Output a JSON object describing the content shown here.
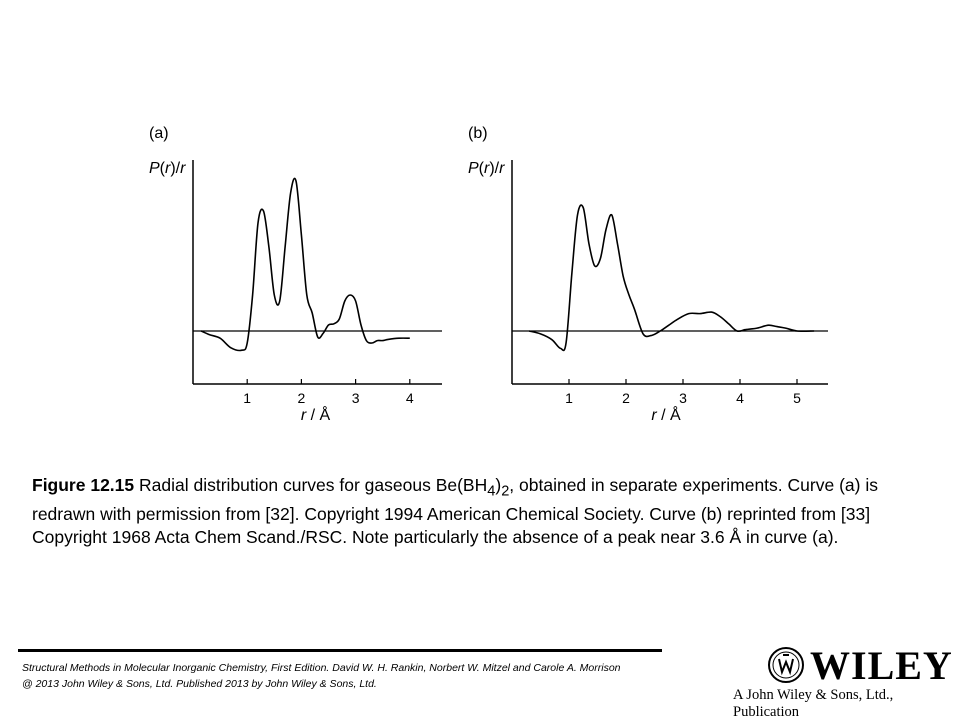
{
  "chart_data": [
    {
      "type": "line",
      "panel_label": "(a)",
      "ylabel": "P(r)/r",
      "xlabel": "r / Å",
      "xlim": [
        0,
        4.5
      ],
      "xticks": [
        1,
        2,
        3,
        4
      ],
      "xtick_labels": [
        "1",
        "2",
        "3",
        "4"
      ],
      "y_units": "arbitrary",
      "series": [
        {
          "x": [
            0.15,
            0.3,
            0.5,
            0.7,
            0.9,
            1.0,
            1.1,
            1.2,
            1.3,
            1.4,
            1.5,
            1.6,
            1.7,
            1.8,
            1.9,
            2.0,
            2.1,
            2.2,
            2.3,
            2.4,
            2.5,
            2.6,
            2.7,
            2.8,
            2.9,
            3.0,
            3.1,
            3.2,
            3.3,
            3.4,
            3.5,
            3.6,
            3.8,
            4.0
          ],
          "y": [
            0.0,
            -0.03,
            -0.06,
            -0.14,
            -0.16,
            -0.1,
            0.3,
            0.9,
            1.0,
            0.7,
            0.3,
            0.25,
            0.7,
            1.15,
            1.25,
            0.8,
            0.3,
            0.15,
            -0.05,
            -0.02,
            0.05,
            0.06,
            0.1,
            0.25,
            0.3,
            0.25,
            0.05,
            -0.08,
            -0.1,
            -0.08,
            -0.08,
            -0.07,
            -0.06,
            -0.06
          ]
        }
      ]
    },
    {
      "type": "line",
      "panel_label": "(b)",
      "ylabel": "P(r)/r",
      "xlabel": "r / Å",
      "xlim": [
        0,
        5.5
      ],
      "xticks": [
        1,
        2,
        3,
        4,
        5
      ],
      "xtick_labels": [
        "1",
        "2",
        "3",
        "4",
        "5"
      ],
      "y_units": "arbitrary",
      "series": [
        {
          "x": [
            0.3,
            0.5,
            0.7,
            0.85,
            0.95,
            1.05,
            1.15,
            1.25,
            1.35,
            1.45,
            1.55,
            1.65,
            1.75,
            1.85,
            1.95,
            2.05,
            2.15,
            2.3,
            2.45,
            2.6,
            2.75,
            2.9,
            3.1,
            3.3,
            3.5,
            3.65,
            3.8,
            3.95,
            4.1,
            4.3,
            4.5,
            4.65,
            4.8,
            5.0,
            5.3
          ],
          "y": [
            0.0,
            -0.02,
            -0.06,
            -0.12,
            -0.08,
            0.4,
            0.8,
            0.85,
            0.6,
            0.45,
            0.5,
            0.7,
            0.8,
            0.6,
            0.38,
            0.25,
            0.15,
            -0.02,
            -0.03,
            0.0,
            0.04,
            0.08,
            0.12,
            0.12,
            0.13,
            0.1,
            0.05,
            0.0,
            0.01,
            0.02,
            0.04,
            0.03,
            0.02,
            0.0,
            0.0
          ]
        }
      ]
    }
  ],
  "caption": {
    "figure_label": "Figure 12.15",
    "text_before_formula": "Radial distribution curves for gaseous Be(BH",
    "formula_sub1": "4",
    "formula_close": ")",
    "formula_sub2": "2",
    "text_after_formula": ", obtained in separate experiments. Curve (a) is redrawn with permission from [32]. Copyright 1994 American Chemical Society. Curve (b) reprinted from [33] Copyright 1968 Acta Chem Scand./RSC. Note particularly the absence of a peak near 3.6 Å in curve (a)."
  },
  "footer": {
    "line1": "Structural Methods in Molecular Inorganic Chemistry, First Edition. David W. H. Rankin, Norbert W. Mitzel and Carole A. Morrison",
    "line2": "@ 2013 John Wiley & Sons, Ltd. Published 2013 by John Wiley & Sons, Ltd."
  },
  "logo": {
    "wordmark": "WILEY",
    "tagline": "A John Wiley & Sons, Ltd., Publication"
  },
  "colors": {
    "ink": "#000000",
    "background": "#ffffff"
  }
}
